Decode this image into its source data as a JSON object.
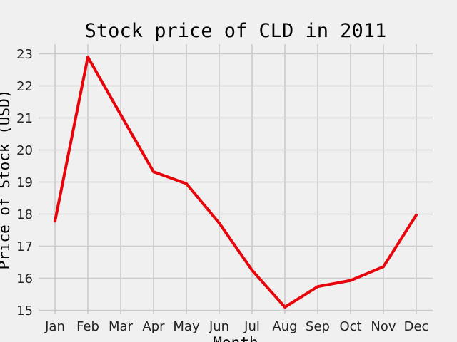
{
  "chart_data": {
    "type": "line",
    "title": "Stock price of CLD in 2011",
    "xlabel": "Month",
    "ylabel": "Price of Stock (USD)",
    "categories": [
      "Jan",
      "Feb",
      "Mar",
      "Apr",
      "May",
      "Jun",
      "Jul",
      "Aug",
      "Sep",
      "Oct",
      "Nov",
      "Dec"
    ],
    "series": [
      {
        "values": [
          17.78,
          22.9,
          21.1,
          19.32,
          18.95,
          17.72,
          16.25,
          15.1,
          15.74,
          15.93,
          16.36,
          17.97
        ],
        "color": "#e8000b"
      }
    ],
    "yticks": [
      15,
      16,
      17,
      18,
      19,
      20,
      21,
      22,
      23
    ],
    "ylim": [
      14.9,
      23.3
    ],
    "grid": true,
    "background": "#f0f0f0"
  }
}
